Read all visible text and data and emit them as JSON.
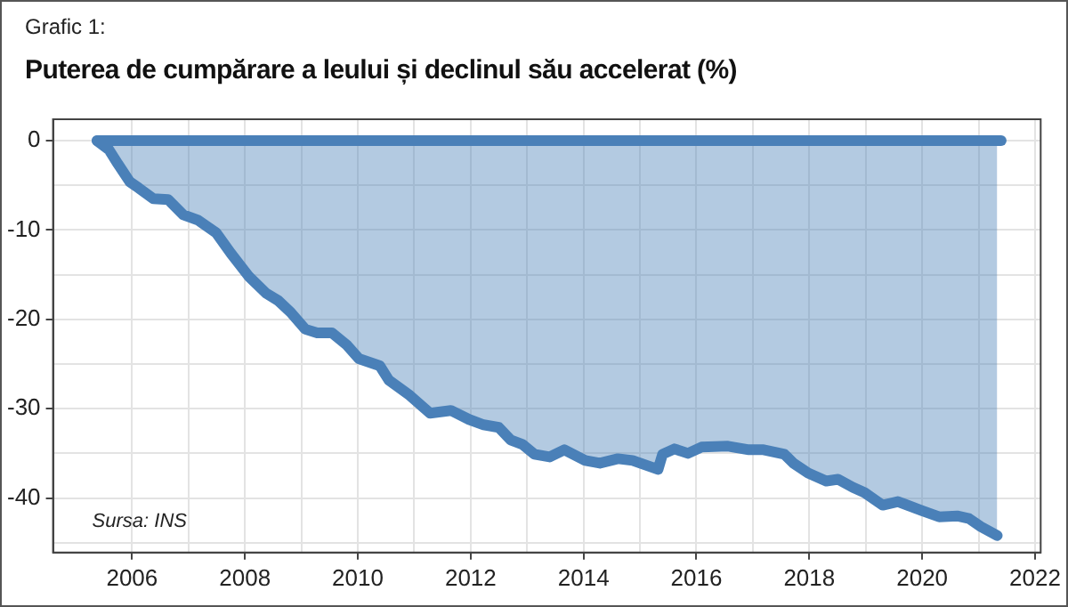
{
  "chart_data": {
    "type": "area",
    "title": "Puterea de cumpărare a leului și declinul său accelerat (%)",
    "annotations": [
      "Grafic 1:",
      "Sursa: INS"
    ],
    "series": [
      {
        "type": "line",
        "color": "#4a80b8",
        "x": [
          2005.38,
          2021.4
        ],
        "values": [
          0,
          0
        ]
      },
      {
        "color": "#4a80b8",
        "x": [
          2005.38,
          2005.59,
          2005.75,
          2005.96,
          2006.12,
          2006.38,
          2006.64,
          2006.91,
          2007.17,
          2007.49,
          2007.75,
          2008.07,
          2008.38,
          2008.59,
          2008.81,
          2009.07,
          2009.28,
          2009.54,
          2009.81,
          2010.02,
          2010.39,
          2010.55,
          2010.92,
          2011.28,
          2011.65,
          2011.97,
          2012.23,
          2012.5,
          2012.71,
          2012.92,
          2013.13,
          2013.4,
          2013.66,
          2014.03,
          2014.29,
          2014.61,
          2014.87,
          2015.14,
          2015.32,
          2015.4,
          2015.61,
          2015.85,
          2016.09,
          2016.56,
          2016.93,
          2017.19,
          2017.56,
          2017.72,
          2017.98,
          2018.3,
          2018.51,
          2018.77,
          2018.98,
          2019.3,
          2019.57,
          2019.99,
          2020.3,
          2020.62,
          2020.83,
          2021.04,
          2021.33
        ],
        "values": [
          0,
          -1,
          -2.6,
          -4.6,
          -5.3,
          -6.5,
          -6.6,
          -8.3,
          -8.9,
          -10.3,
          -12.6,
          -15.2,
          -17.1,
          -17.9,
          -19.2,
          -21.1,
          -21.5,
          -21.5,
          -22.9,
          -24.4,
          -25.2,
          -26.8,
          -28.5,
          -30.5,
          -30.2,
          -31.2,
          -31.8,
          -32.1,
          -33.5,
          -34,
          -35.1,
          -35.4,
          -34.6,
          -35.8,
          -36.1,
          -35.6,
          -35.8,
          -36.4,
          -36.8,
          -35.1,
          -34.5,
          -35,
          -34.3,
          -34.2,
          -34.6,
          -34.6,
          -35.1,
          -36.1,
          -37.2,
          -38.1,
          -37.9,
          -38.8,
          -39.4,
          -40.8,
          -40.4,
          -41.4,
          -42.1,
          -42,
          -42.3,
          -43.2,
          -44.2
        ]
      }
    ],
    "xlim": [
      2004.6,
      2022.1
    ],
    "xticks": [
      2006,
      {
        "value": 2007,
        "label": null
      },
      2008,
      {
        "value": 2009,
        "label": null
      },
      2010,
      {
        "value": 2011,
        "label": null
      },
      2012,
      {
        "value": 2013,
        "label": null
      },
      2014,
      {
        "value": 2015,
        "label": null
      },
      2016,
      {
        "value": 2017,
        "label": null
      },
      2018,
      {
        "value": 2019,
        "label": null
      },
      2020,
      {
        "value": 2021,
        "label": null
      },
      2022
    ],
    "ylim": [
      -46.1,
      2.4
    ],
    "yticks": [
      {
        "value": -45,
        "label": null
      },
      -40,
      {
        "value": -35,
        "label": null
      },
      -30,
      {
        "value": -25,
        "label": null
      },
      -20,
      {
        "value": -15,
        "label": null
      },
      -10,
      {
        "value": -5,
        "label": null
      },
      0
    ],
    "grid": true,
    "legend": false,
    "marker": "none",
    "line_style": "solid"
  }
}
